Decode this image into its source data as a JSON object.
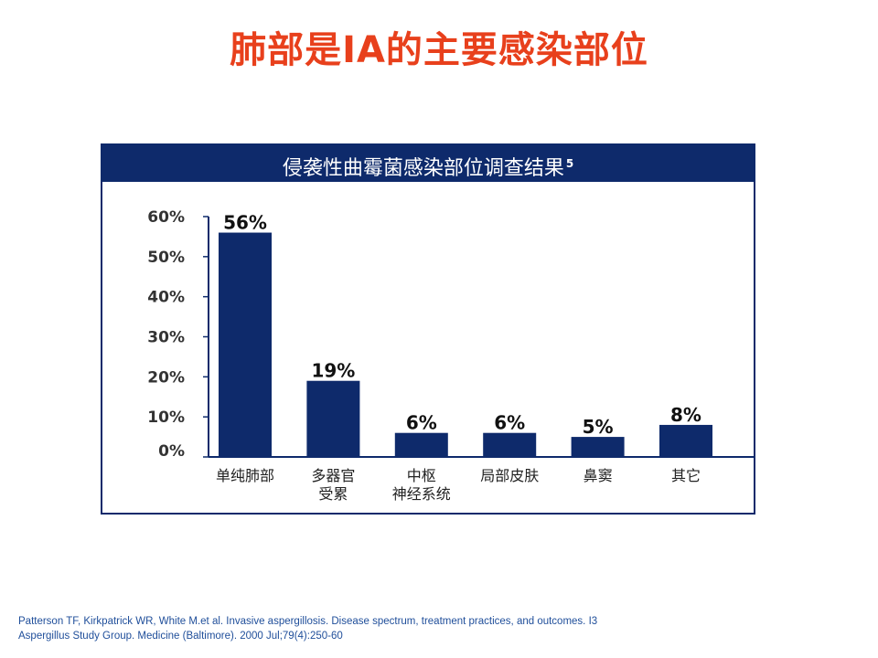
{
  "slide": {
    "title": "肺部是IA的主要感染部位"
  },
  "chart_data": {
    "type": "bar",
    "title": "侵袭性曲霉菌感染部位调查结果",
    "title_superscript": "5",
    "categories": [
      [
        "单纯肺部"
      ],
      [
        "多器官",
        "受累"
      ],
      [
        "中枢",
        "神经系统"
      ],
      [
        "局部皮肤"
      ],
      [
        "鼻窦"
      ],
      [
        "其它"
      ]
    ],
    "values": [
      56,
      19,
      6,
      6,
      5,
      8
    ],
    "value_labels": [
      "56%",
      "19%",
      "6%",
      "6%",
      "5%",
      "8%"
    ],
    "y_ticks": [
      "0%",
      "10%",
      "20%",
      "30%",
      "40%",
      "50%",
      "60%"
    ],
    "ylim": [
      0,
      60
    ],
    "grid": false,
    "bar_color": "#0e2a6b"
  },
  "reference": {
    "line1": "Patterson TF, Kirkpatrick WR, White M.et al. Invasive aspergillosis. Disease spectrum, treatment practices, and outcomes. I3",
    "line2": "Aspergillus Study Group. Medicine (Baltimore). 2000 Jul;79(4):250-60"
  }
}
